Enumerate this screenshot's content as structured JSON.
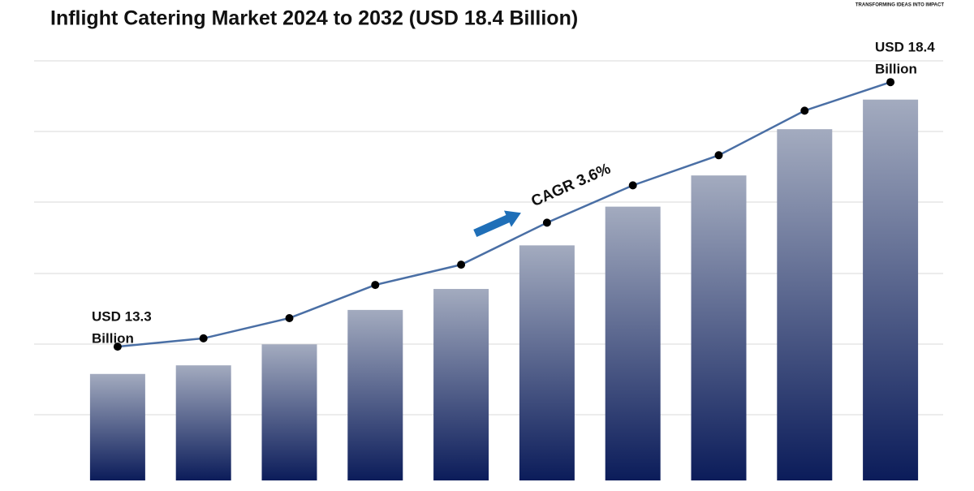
{
  "chart_data": {
    "type": "bar-line",
    "title": "Inflight Catering Market 2024 to 2032 (USD 18.4 Billion)",
    "logo_tagline": "TRANSFORMING IDEAS INTO IMPACT",
    "categories": [
      null,
      null,
      null,
      null,
      null,
      null,
      null,
      null,
      null,
      null
    ],
    "series": [
      {
        "type": "bar",
        "color_top": "#a3abbf",
        "color": "#0b1c5a",
        "values": [
          13.3,
          13.46,
          13.85,
          14.49,
          14.88,
          15.69,
          16.41,
          16.99,
          17.85,
          18.4
        ]
      },
      {
        "type": "line",
        "axis": "y2",
        "color": "#4a6fa5",
        "values": [
          13.3,
          13.46,
          13.85,
          14.49,
          14.88,
          15.69,
          16.41,
          16.99,
          17.85,
          18.4
        ]
      }
    ],
    "ylim": [
      11.32,
      19.12
    ],
    "y2lim": [
      10.72,
      18.81
    ],
    "annotations": [
      {
        "lines": [
          "USD 13.3",
          "Billion"
        ]
      },
      {
        "lines": [
          "USD 18.4",
          "Billion"
        ]
      },
      {
        "text": "CAGR 3.6%"
      }
    ]
  }
}
